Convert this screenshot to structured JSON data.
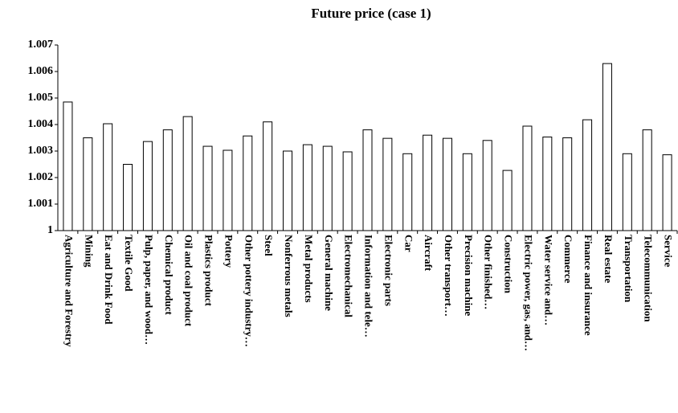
{
  "chart_data": {
    "type": "bar",
    "title": "Future price (case 1)",
    "categories": [
      "Agriculture and Forestry",
      "Mining",
      "Eat and Drink Food",
      "Textile Good",
      "Pulp, paper, and wood…",
      "Chemical product",
      "Oil and coal product",
      "Plastics product",
      "Pottery",
      "Other pottery industry…",
      "Steel",
      "Nonferrous metals",
      "Metal products",
      "General machine",
      "Electromechanical",
      "Information and tele…",
      "Electronic parts",
      "Car",
      "Aircraft",
      "Other transport…",
      "Precision machine",
      "Other finished…",
      "Construction",
      "Electric power, gas, and…",
      "Water service and…",
      "Commerce",
      "Finance and insurance",
      "Real estate",
      "Transportation",
      "Telecommunication",
      "Service"
    ],
    "values": [
      1.00485,
      1.0035,
      1.00403,
      1.0025,
      1.00336,
      1.0038,
      1.0043,
      1.00318,
      1.00303,
      1.00357,
      1.0041,
      1.003,
      1.00324,
      1.00318,
      1.00297,
      1.0038,
      1.00348,
      1.0029,
      1.0036,
      1.00348,
      1.0029,
      1.0034,
      1.00227,
      1.00394,
      1.00353,
      1.0035,
      1.00418,
      1.0063,
      1.0029,
      1.0038,
      1.00286
    ],
    "color": "#ffffff",
    "ylim": [
      1,
      1.007
    ],
    "yticks": [
      1,
      1.001,
      1.002,
      1.003,
      1.004,
      1.005,
      1.006,
      1.007
    ],
    "grid": false
  }
}
